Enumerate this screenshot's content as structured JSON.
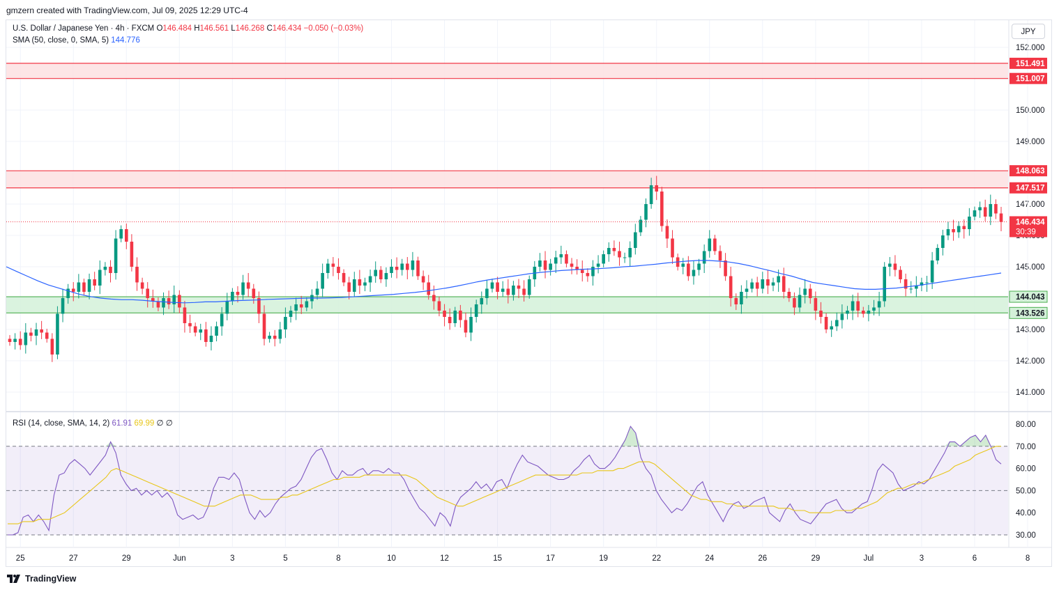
{
  "header": {
    "attribution": "gmzern created with TradingView.com, Jul 09, 2025 12:29 UTC-4"
  },
  "legend": {
    "symbol": "U.S. Dollar / Japanese Yen · 4h · FXCM",
    "o_label": "O",
    "o": "146.484",
    "h_label": "H",
    "h": "146.561",
    "l_label": "L",
    "l": "146.268",
    "c_label": "C",
    "c": "146.434",
    "change": "−0.050 (−0.03%)",
    "sma_label": "SMA (50, close, 0, SMA, 5)",
    "sma_value": "144.776",
    "rsi_label": "RSI (14, close, SMA, 14, 2)",
    "rsi_value": "61.91",
    "rsi_sma": "69.99",
    "rsi_extra1": "∅",
    "rsi_extra2": "∅"
  },
  "currency_button": "JPY",
  "price_badges": {
    "current": "146.434",
    "countdown": "30:39"
  },
  "footer": {
    "brand": "TradingView"
  },
  "colors": {
    "up": "#089981",
    "down": "#f23645",
    "sma": "#2962ff",
    "rsi": "#7e57c2",
    "rsi_sma": "#e8c619",
    "resistance_fill": "#fde0e2",
    "resistance_line": "#f23645",
    "support_fill": "#d4f1d9",
    "support_line": "#4caf50"
  },
  "chart_data": [
    {
      "type": "candlestick",
      "title": "U.S. Dollar / Japanese Yen · 4h · FXCM",
      "ylim": [
        140.6,
        153.0
      ],
      "y_ticks": [
        "152.000",
        "151.000",
        "150.000",
        "149.000",
        "148.000",
        "147.000",
        "146.000",
        "145.000",
        "144.000",
        "143.000",
        "142.000",
        "141.000"
      ],
      "x_tick_labels": [
        "25",
        "27",
        "29",
        "Jun",
        "3",
        "5",
        "8",
        "10",
        "12",
        "15",
        "17",
        "19",
        "22",
        "24",
        "26",
        "29",
        "Jul",
        "3",
        "6",
        "8"
      ],
      "x_tick_index": [
        2,
        12,
        22,
        32,
        42,
        52,
        62,
        72,
        82,
        92,
        102,
        112,
        122,
        132,
        142,
        152,
        162,
        172,
        182,
        192
      ],
      "zones": [
        {
          "name": "resistance-zone-upper",
          "low": 151.007,
          "high": 151.491,
          "kind": "resistance",
          "labels": [
            "151.491",
            "151.007"
          ]
        },
        {
          "name": "resistance-zone-lower",
          "low": 147.517,
          "high": 148.063,
          "kind": "resistance",
          "labels": [
            "148.063",
            "147.517"
          ]
        },
        {
          "name": "support-zone",
          "low": 143.526,
          "high": 144.043,
          "kind": "support",
          "labels": [
            "144.043",
            "143.526"
          ]
        }
      ],
      "closes": [
        142.6,
        142.7,
        142.5,
        142.9,
        142.8,
        143.0,
        142.9,
        142.7,
        142.2,
        143.5,
        144.0,
        144.3,
        144.2,
        144.5,
        144.2,
        144.6,
        144.4,
        144.9,
        145.0,
        144.8,
        145.9,
        146.2,
        145.8,
        145.0,
        144.5,
        144.3,
        144.0,
        143.9,
        143.7,
        144.0,
        143.8,
        144.1,
        143.7,
        143.2,
        143.1,
        142.9,
        143.0,
        142.6,
        142.8,
        143.1,
        143.5,
        143.9,
        144.2,
        144.1,
        144.5,
        144.3,
        144.0,
        143.5,
        142.7,
        142.8,
        142.7,
        143.0,
        143.4,
        143.6,
        143.8,
        143.7,
        143.9,
        144.1,
        144.3,
        144.8,
        145.1,
        145.0,
        144.8,
        144.5,
        144.2,
        144.6,
        144.4,
        144.5,
        144.7,
        144.9,
        144.6,
        144.8,
        145.0,
        144.9,
        145.1,
        144.9,
        145.2,
        144.7,
        144.5,
        144.1,
        143.9,
        143.6,
        143.4,
        143.2,
        143.6,
        143.3,
        142.9,
        143.4,
        143.8,
        144.0,
        144.3,
        144.5,
        144.2,
        144.3,
        144.1,
        144.4,
        144.3,
        144.1,
        144.6,
        145.0,
        145.2,
        144.9,
        145.1,
        145.3,
        145.4,
        145.1,
        145.0,
        144.9,
        144.8,
        144.7,
        145.0,
        145.1,
        145.4,
        145.6,
        145.5,
        145.3,
        145.3,
        145.6,
        146.1,
        146.5,
        147.0,
        147.6,
        147.4,
        146.3,
        145.9,
        145.3,
        145.0,
        145.1,
        144.7,
        144.9,
        145.1,
        145.5,
        145.9,
        145.5,
        145.2,
        144.7,
        144.0,
        143.8,
        144.2,
        144.3,
        144.5,
        144.3,
        144.6,
        144.4,
        144.5,
        144.7,
        144.2,
        144.0,
        143.7,
        144.1,
        144.3,
        144.0,
        143.6,
        143.4,
        143.0,
        143.1,
        143.3,
        143.5,
        143.6,
        143.9,
        143.6,
        143.5,
        143.6,
        143.7,
        143.9,
        145.0,
        145.1,
        144.9,
        144.6,
        144.3,
        144.3,
        144.4,
        144.5,
        144.5,
        145.2,
        145.6,
        146.0,
        146.2,
        146.1,
        146.3,
        146.2,
        146.6,
        146.8,
        146.9,
        146.6,
        147.0,
        146.7,
        146.434
      ],
      "sma": {
        "name": "SMA (50)",
        "start_index": 0,
        "values": [
          145.0,
          144.85,
          144.7,
          144.55,
          144.42,
          144.32,
          144.22,
          144.12,
          144.05,
          144.0,
          143.97,
          143.95,
          143.95,
          143.93,
          143.9,
          143.88,
          143.86,
          143.85,
          143.86,
          143.88,
          143.88,
          143.9,
          143.92,
          143.93,
          143.94,
          143.96,
          143.97,
          143.98,
          143.99,
          144.0,
          144.0,
          144.01,
          144.02,
          144.04,
          144.06,
          144.08,
          144.1,
          144.12,
          144.15,
          144.18,
          144.22,
          144.27,
          144.32,
          144.38,
          144.45,
          144.52,
          144.58,
          144.63,
          144.68,
          144.73,
          144.78,
          144.82,
          144.85,
          144.88,
          144.9,
          144.92,
          144.93,
          144.95,
          144.97,
          145.0,
          145.02,
          145.05,
          145.08,
          145.12,
          145.15,
          145.18,
          145.2,
          145.2,
          145.18,
          145.15,
          145.1,
          145.03,
          144.95,
          144.87,
          144.78,
          144.7,
          144.6,
          144.5,
          144.45,
          144.4,
          144.35,
          144.3,
          144.28,
          144.28,
          144.3,
          144.32,
          144.36,
          144.4,
          144.45,
          144.5,
          144.55,
          144.6,
          144.65,
          144.7,
          144.75,
          144.8
        ]
      },
      "sma_x_offset": 0
    },
    {
      "type": "line",
      "title": "RSI (14, close, SMA, 14, 2)",
      "ylim": [
        25,
        85
      ],
      "y_ticks": [
        "80.00",
        "70.00",
        "60.00",
        "50.00",
        "40.00",
        "30.00"
      ],
      "band": [
        30,
        70
      ],
      "midline": 50,
      "series": [
        {
          "name": "RSI",
          "values": [
            30,
            30,
            31,
            38,
            39,
            36,
            39,
            36,
            32,
            48,
            57,
            58,
            62,
            64,
            62,
            60,
            57,
            60,
            63,
            66,
            72,
            67,
            57,
            53,
            50,
            51,
            48,
            50,
            48,
            50,
            47,
            49,
            46,
            39,
            37,
            38,
            39,
            37,
            38,
            43,
            51,
            56,
            56,
            55,
            58,
            55,
            47,
            40,
            37,
            41,
            38,
            40,
            44,
            47,
            49,
            51,
            52,
            55,
            60,
            65,
            68,
            69,
            64,
            58,
            55,
            59,
            57,
            57,
            59,
            60,
            57,
            59,
            59,
            58,
            60,
            58,
            58,
            55,
            50,
            46,
            42,
            40,
            37,
            34,
            40,
            38,
            34,
            43,
            47,
            49,
            51,
            54,
            51,
            53,
            50,
            54,
            55,
            51,
            57,
            62,
            66,
            63,
            62,
            61,
            59,
            57,
            56,
            55,
            55,
            56,
            59,
            61,
            64,
            66,
            62,
            60,
            60,
            62,
            65,
            69,
            73,
            79,
            76,
            65,
            60,
            57,
            50,
            46,
            43,
            40,
            42,
            41,
            44,
            48,
            52,
            54,
            48,
            44,
            40,
            36,
            41,
            44,
            45,
            42,
            43,
            45,
            46,
            47,
            40,
            38,
            36,
            41,
            44,
            40,
            37,
            36,
            35,
            38,
            41,
            44,
            45,
            46,
            42,
            40,
            40,
            42,
            44,
            45,
            51,
            59,
            62,
            60,
            58,
            53,
            50,
            51,
            52,
            54,
            53,
            55,
            59,
            63,
            67,
            72,
            72,
            70,
            72,
            74,
            75,
            72,
            75,
            70,
            64,
            62
          ]
        },
        {
          "name": "RSI SMA",
          "values": [
            35,
            35,
            35,
            36,
            36,
            36,
            37,
            37,
            37,
            38,
            39,
            40,
            42,
            44,
            46,
            48,
            50,
            52,
            54,
            56,
            59,
            60,
            59,
            58,
            57,
            56,
            55,
            54,
            53,
            52,
            51,
            50,
            49,
            48,
            47,
            46,
            45,
            44,
            43,
            43,
            43,
            44,
            45,
            46,
            47,
            48,
            48,
            48,
            47,
            46,
            46,
            46,
            46,
            47,
            47,
            48,
            48,
            49,
            50,
            51,
            52,
            53,
            54,
            55,
            55,
            56,
            56,
            56,
            56,
            57,
            57,
            57,
            57,
            57,
            57,
            57,
            57,
            57,
            56,
            55,
            53,
            51,
            49,
            47,
            46,
            45,
            44,
            43,
            43,
            44,
            45,
            46,
            47,
            48,
            49,
            50,
            51,
            52,
            53,
            54,
            55,
            56,
            57,
            57,
            57,
            57,
            57,
            57,
            57,
            57,
            57,
            58,
            58,
            58,
            59,
            59,
            59,
            59,
            60,
            60,
            61,
            62,
            63,
            63,
            63,
            62,
            60,
            58,
            56,
            54,
            52,
            50,
            48,
            47,
            46,
            46,
            45,
            45,
            45,
            44,
            44,
            43,
            43,
            43,
            43,
            43,
            43,
            43,
            43,
            42,
            42,
            42,
            41,
            41,
            41,
            40,
            40,
            40,
            40,
            40,
            41,
            41,
            41,
            41,
            42,
            42,
            43,
            44,
            45,
            47,
            49,
            50,
            51,
            51,
            52,
            53,
            53,
            54,
            55,
            56,
            57,
            58,
            59,
            61,
            62,
            63,
            64,
            66,
            67,
            68,
            69,
            70,
            70
          ]
        }
      ]
    }
  ]
}
